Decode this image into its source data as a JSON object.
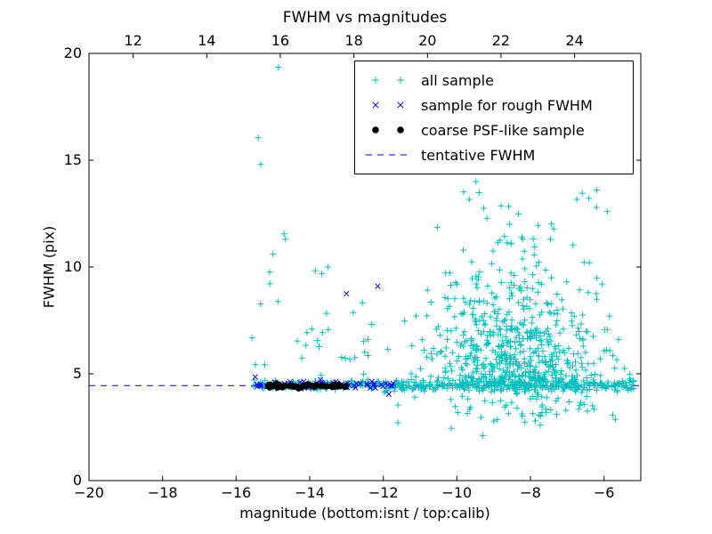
{
  "chart_data": {
    "type": "scatter",
    "title": "FWHM vs magnitudes",
    "xlabel": "magnitude (bottom:isnt / top:calib)",
    "ylabel": "FWHM (pix)",
    "x_bottom": {
      "min": -20,
      "max": -5,
      "ticks": [
        -20,
        -18,
        -16,
        -14,
        -12,
        -10,
        -8,
        -6
      ]
    },
    "x_top": {
      "min": 10.8,
      "max": 25.8,
      "ticks": [
        12,
        14,
        16,
        18,
        20,
        22,
        24
      ]
    },
    "y": {
      "min": 0,
      "max": 20,
      "ticks": [
        0,
        5,
        10,
        15,
        20
      ]
    },
    "grid": false,
    "legend_position": "upper right",
    "tentative_fwhm": 4.45,
    "seed": 7,
    "marker_size": 3.5,
    "axis_color": "#000000",
    "background": "#ffffff",
    "series": [
      {
        "name": "all sample",
        "marker": "plus",
        "color": "#00bfbf",
        "clusters": [
          {
            "count": 130,
            "x": {
              "dist": "uniform",
              "min": -15.55,
              "max": -12.0
            },
            "y": {
              "dist": "normal",
              "mean": 4.47,
              "sd": 0.1,
              "min": 4.2,
              "max": 4.85
            }
          },
          {
            "count": 330,
            "x": {
              "dist": "uniform",
              "min": -12.0,
              "max": -5.15
            },
            "y": {
              "dist": "normal",
              "mean": 4.45,
              "sd": 0.13,
              "min": 3.95,
              "max": 4.95
            }
          },
          {
            "count": 620,
            "x": {
              "dist": "normal",
              "mean": -8.4,
              "sd": 1.15,
              "min": -12.3,
              "max": -5.3
            },
            "y": {
              "dist": "exp",
              "base": 4.55,
              "scale": 2.3,
              "min": 4.55,
              "max": 15.8
            }
          },
          {
            "count": 70,
            "x": {
              "dist": "normal",
              "mean": -8.3,
              "sd": 1.3,
              "min": -11.6,
              "max": -5.4
            },
            "y": {
              "dist": "uniform",
              "min": 2.6,
              "max": 4.3
            }
          },
          {
            "count": 34,
            "x": {
              "dist": "uniform",
              "min": -15.6,
              "max": -12.3
            },
            "y": {
              "dist": "exp",
              "base": 4.9,
              "scale": 2.8,
              "min": 4.9,
              "max": 16.3
            }
          }
        ],
        "outliers": [
          [
            -14.85,
            19.35
          ],
          [
            -15.4,
            16.05
          ],
          [
            -15.33,
            14.8
          ],
          [
            -14.7,
            11.55
          ],
          [
            -15.0,
            10.6
          ],
          [
            -9.3,
            2.1
          ],
          [
            -10.15,
            2.45
          ],
          [
            -6.2,
            13.6
          ],
          [
            -7.45,
            15.3
          ],
          [
            -8.35,
            16.1
          ]
        ]
      },
      {
        "name": "sample for rough FWHM",
        "marker": "x",
        "color": "#0000ff",
        "clusters": [
          {
            "count": 60,
            "x": {
              "dist": "uniform",
              "min": -15.5,
              "max": -11.6
            },
            "y": {
              "dist": "normal",
              "mean": 4.5,
              "sd": 0.07,
              "min": 4.3,
              "max": 4.72
            }
          }
        ],
        "outliers": [
          [
            -15.48,
            4.85
          ],
          [
            -13.0,
            8.75
          ],
          [
            -12.15,
            9.1
          ],
          [
            -11.85,
            4.05
          ]
        ]
      },
      {
        "name": "coarse PSF-like sample",
        "marker": "dot",
        "color": "#000000",
        "clusters": [
          {
            "count": 45,
            "x": {
              "dist": "uniform",
              "min": -15.15,
              "max": -12.95
            },
            "y": {
              "dist": "normal",
              "mean": 4.43,
              "sd": 0.045,
              "min": 4.32,
              "max": 4.56
            }
          }
        ],
        "outliers": []
      },
      {
        "name": "tentative FWHM",
        "marker": "dashed-line",
        "color": "#0000ff",
        "hline": 4.45
      }
    ]
  }
}
